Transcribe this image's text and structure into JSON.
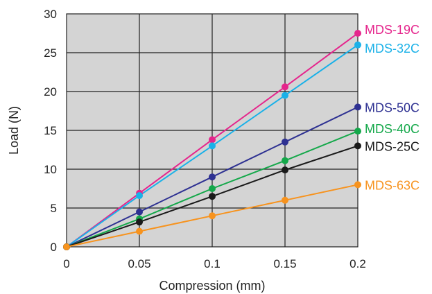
{
  "chart_data": {
    "type": "line",
    "xlabel": "Compression (mm)",
    "ylabel": "Load (N)",
    "xlim": [
      0,
      0.2
    ],
    "ylim": [
      0,
      30
    ],
    "x": [
      0,
      0.05,
      0.1,
      0.15,
      0.2
    ],
    "x_ticks": [
      "0",
      "0.05",
      "0.1",
      "0.15",
      "0.2"
    ],
    "y_ticks": [
      "0",
      "5",
      "10",
      "15",
      "20",
      "25",
      "30"
    ],
    "grid": true,
    "plot_background": "#d4d4d4",
    "legend_placement": "right-end-of-lines",
    "series": [
      {
        "name": "MDS-19C",
        "color": "#e5258c",
        "values": [
          0,
          6.9,
          13.8,
          20.6,
          27.5
        ]
      },
      {
        "name": "MDS-32C",
        "color": "#1ab1e8",
        "values": [
          0,
          6.6,
          13.0,
          19.5,
          26.0
        ]
      },
      {
        "name": "MDS-50C",
        "color": "#2e3192",
        "values": [
          0,
          4.5,
          9.0,
          13.5,
          18.0
        ]
      },
      {
        "name": "MDS-40C",
        "color": "#14a84a",
        "values": [
          0,
          3.6,
          7.5,
          11.1,
          14.9
        ]
      },
      {
        "name": "MDS-25C",
        "color": "#1a1a1a",
        "values": [
          0,
          3.2,
          6.5,
          9.9,
          13.0
        ]
      },
      {
        "name": "MDS-63C",
        "color": "#f7931e",
        "values": [
          0,
          2.0,
          4.0,
          6.0,
          8.0
        ]
      }
    ]
  }
}
